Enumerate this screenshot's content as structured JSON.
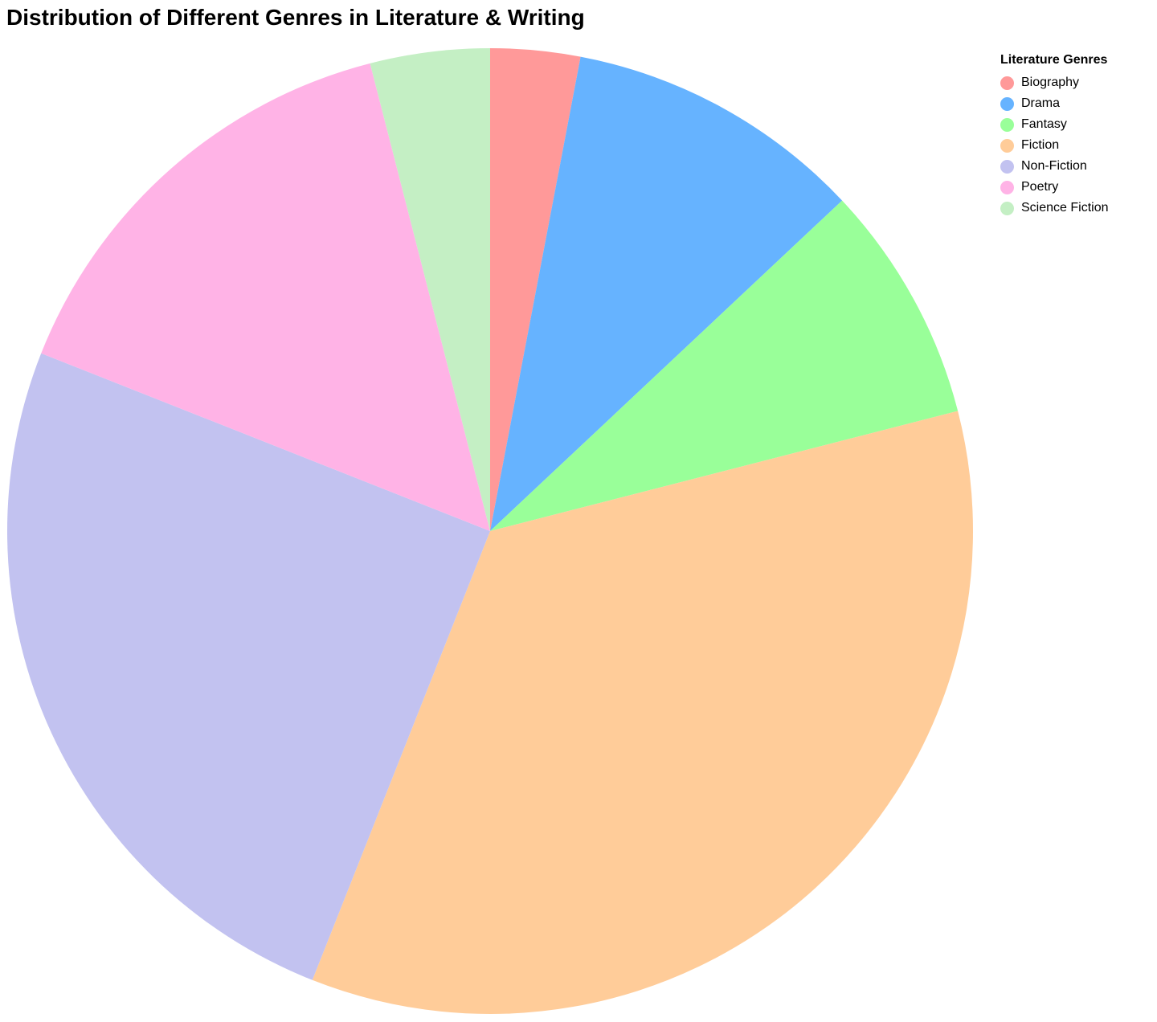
{
  "chart_data": {
    "type": "pie",
    "title": "Distribution of Different Genres in Literature & Writing",
    "legend": {
      "title": "Literature Genres",
      "placement": "top-right"
    },
    "categories": [
      "Biography",
      "Drama",
      "Fantasy",
      "Fiction",
      "Non-Fiction",
      "Poetry",
      "Science Fiction"
    ],
    "values": [
      3,
      10,
      8,
      35,
      25,
      15,
      4
    ],
    "colors": [
      "#FF9999",
      "#66B3FF",
      "#99FF99",
      "#FFCC99",
      "#C2C2F0",
      "#FFB3E6",
      "#C4EFC4"
    ],
    "start_angle": "top",
    "direction": "clockwise"
  }
}
